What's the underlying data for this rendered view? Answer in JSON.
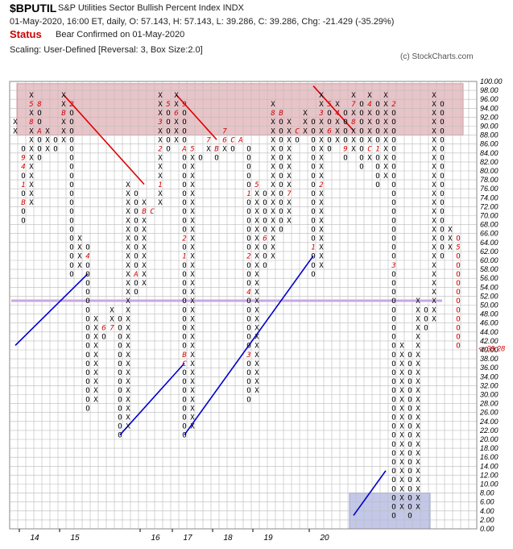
{
  "header": {
    "ticker": "$BPUTIL",
    "subtitle": "S&P Utilities Sector Bullish Percent Index  INDX",
    "ohlc": "01-May-2020, 16:00 ET, daily, O: 57.143, H: 57.143, L: 39.286, C: 39.286, Chg: -21.429 (-35.29%)",
    "status_label": "Status",
    "status_text": "Bear Confirmed on 01-May-2020",
    "scaling": "Scaling: User-Defined [Reversal: 3, Box Size:2.0]",
    "copyright": "(c) StockCharts.com"
  },
  "colors": {
    "x_symbol": "#000000",
    "o_symbol": "#000000",
    "month_marker": "#cc0000",
    "current_column": "#cc0000",
    "bullish_trendline": "#0000cc",
    "bearish_trendline": "#dd0000",
    "overbought_zone": "#e8c4c8",
    "oversold_zone": "#c4c8e8",
    "midline": "#c8a8e0",
    "grid": "#bbbbbb"
  },
  "chart_data": {
    "type": "point-and-figure",
    "box_size": 2.0,
    "reversal": 3,
    "ylim": [
      0,
      100
    ],
    "y_ticks": [
      0,
      2,
      4,
      6,
      8,
      10,
      12,
      14,
      16,
      18,
      20,
      22,
      24,
      26,
      28,
      30,
      32,
      34,
      36,
      38,
      40,
      42,
      44,
      46,
      48,
      50,
      52,
      54,
      56,
      58,
      60,
      62,
      64,
      66,
      68,
      70,
      72,
      74,
      76,
      78,
      80,
      82,
      84,
      86,
      88,
      90,
      92,
      94,
      96,
      98,
      100
    ],
    "y_tick_labels": [
      "0.00",
      "2.00",
      "4.00",
      "6.00",
      "8.00",
      "10.00",
      "12.00",
      "14.00",
      "16.00",
      "18.00",
      "20.00",
      "22.00",
      "24.00",
      "26.00",
      "28.00",
      "30.00",
      "32.00",
      "34.00",
      "36.00",
      "38.00",
      "40.00",
      "42.00",
      "44.00",
      "46.00",
      "48.00",
      "50.00",
      "52.00",
      "54.00",
      "56.00",
      "58.00",
      "60.00",
      "62.00",
      "64.00",
      "66.00",
      "68.00",
      "70.00",
      "72.00",
      "74.00",
      "76.00",
      "78.00",
      "80.00",
      "82.00",
      "84.00",
      "86.00",
      "88.00",
      "90.00",
      "92.00",
      "94.00",
      "96.00",
      "98.00",
      "100.00"
    ],
    "last_price_label": "<<39.28",
    "last_price": 39.286,
    "overbought_range": [
      88,
      100
    ],
    "oversold_range": [
      0,
      8
    ],
    "midline": 50,
    "year_labels": [
      {
        "col": 1,
        "label": "14"
      },
      {
        "col": 6,
        "label": "15"
      },
      {
        "col": 16,
        "label": "16"
      },
      {
        "col": 20,
        "label": "17"
      },
      {
        "col": 25,
        "label": "18"
      },
      {
        "col": 30,
        "label": "19"
      },
      {
        "col": 37,
        "label": "20"
      }
    ],
    "columns": [
      {
        "t": "X",
        "from": 88,
        "to": 90
      },
      {
        "t": "O",
        "from": 84,
        "to": 68,
        "m": {
          "88": "7",
          "82": "9",
          "80": "4",
          "76": "1",
          "72": "B",
          "66": "A"
        }
      },
      {
        "t": "X",
        "from": 72,
        "to": 96,
        "m": {
          "94": "5",
          "90": "8"
        }
      },
      {
        "t": "O",
        "from": 94,
        "to": 82,
        "m": {
          "94": "8",
          "88": "A"
        }
      },
      {
        "t": "X",
        "from": 84,
        "to": 88
      },
      {
        "t": "O",
        "from": 86,
        "to": 84,
        "m": {
          "82": "9"
        }
      },
      {
        "t": "X",
        "from": 86,
        "to": 96,
        "m": {
          "92": "B"
        }
      },
      {
        "t": "O",
        "from": 94,
        "to": 56,
        "m": {
          "94": "2"
        }
      },
      {
        "t": "X",
        "from": 58,
        "to": 64
      },
      {
        "t": "O",
        "from": 62,
        "to": 26,
        "m": {
          "64": "5",
          "60": "4"
        }
      },
      {
        "t": "X",
        "from": 28,
        "to": 46
      },
      {
        "t": "O",
        "from": 44,
        "to": 42,
        "m": {
          "44": "6"
        }
      },
      {
        "t": "X",
        "from": 44,
        "to": 48,
        "m": {
          "44": "7"
        }
      },
      {
        "t": "O",
        "from": 46,
        "to": 20,
        "m": {
          "48": "8"
        }
      },
      {
        "t": "X",
        "from": 22,
        "to": 76
      },
      {
        "t": "O",
        "from": 74,
        "to": 52,
        "m": {
          "76": "9",
          "56": "A"
        }
      },
      {
        "t": "X",
        "from": 54,
        "to": 72,
        "m": {
          "70": "B"
        }
      },
      {
        "t": "O",
        "from": 70,
        "to": 70,
        "m": {
          "70": "C"
        }
      },
      {
        "t": "X",
        "from": 72,
        "to": 96,
        "m": {
          "76": "1",
          "84": "2",
          "90": "3"
        }
      },
      {
        "t": "O",
        "from": 94,
        "to": 84,
        "m": {
          "94": "5"
        }
      },
      {
        "t": "X",
        "from": 86,
        "to": 96,
        "m": {
          "92": "6"
        }
      },
      {
        "t": "O",
        "from": 94,
        "to": 20,
        "m": {
          "94": "9",
          "84": "A",
          "64": "2",
          "60": "1",
          "38": "B",
          "36": "C"
        }
      },
      {
        "t": "X",
        "from": 22,
        "to": 84,
        "m": {
          "84": "5"
        }
      },
      {
        "t": "O",
        "from": 82,
        "to": 82
      },
      {
        "t": "X",
        "from": 84,
        "to": 86,
        "m": {
          "86": "7"
        }
      },
      {
        "t": "O",
        "from": 84,
        "to": 82,
        "m": {
          "84": "B"
        }
      },
      {
        "t": "X",
        "from": 84,
        "to": 88,
        "m": {
          "86": "6",
          "88": "7"
        }
      },
      {
        "t": "O",
        "from": 86,
        "to": 84,
        "m": {
          "86": "C"
        }
      },
      {
        "t": "X",
        "from": 86,
        "to": 86,
        "m": {
          "86": "A"
        }
      },
      {
        "t": "O",
        "from": 84,
        "to": 28,
        "m": {
          "74": "1",
          "60": "2",
          "52": "4",
          "38": "3"
        }
      },
      {
        "t": "X",
        "from": 30,
        "to": 76,
        "m": {
          "76": "5"
        }
      },
      {
        "t": "O",
        "from": 74,
        "to": 58,
        "m": {
          "64": "6"
        }
      },
      {
        "t": "X",
        "from": 60,
        "to": 94,
        "m": {
          "92": "8"
        }
      },
      {
        "t": "O",
        "from": 92,
        "to": 66,
        "m": {
          "92": "B"
        }
      },
      {
        "t": "X",
        "from": 68,
        "to": 90,
        "m": {
          "74": "7"
        }
      },
      {
        "t": "O",
        "from": 88,
        "to": 86,
        "m": {
          "88": "C"
        }
      },
      {
        "t": "X",
        "from": 88,
        "to": 92
      },
      {
        "t": "O",
        "from": 90,
        "to": 56,
        "m": {
          "62": "1"
        }
      },
      {
        "t": "X",
        "from": 58,
        "to": 96,
        "m": {
          "76": "2",
          "92": "3"
        }
      },
      {
        "t": "O",
        "from": 94,
        "to": 84,
        "m": {
          "94": "5",
          "88": "6"
        }
      },
      {
        "t": "X",
        "from": 86,
        "to": 94,
        "m": {
          "92": "4"
        }
      },
      {
        "t": "O",
        "from": 92,
        "to": 82,
        "m": {
          "84": "9"
        }
      },
      {
        "t": "X",
        "from": 84,
        "to": 96,
        "m": {
          "94": "7",
          "90": "8"
        }
      },
      {
        "t": "O",
        "from": 94,
        "to": 80
      },
      {
        "t": "X",
        "from": 82,
        "to": 96,
        "m": {
          "94": "4",
          "84": "C"
        }
      },
      {
        "t": "O",
        "from": 94,
        "to": 76,
        "m": {
          "84": "1"
        }
      },
      {
        "t": "X",
        "from": 78,
        "to": 96
      },
      {
        "t": "O",
        "from": 94,
        "to": 2,
        "m": {
          "94": "2",
          "58": "3"
        }
      },
      {
        "t": "X",
        "from": 4,
        "to": 40
      },
      {
        "t": "O",
        "from": 38,
        "to": 2
      },
      {
        "t": "X",
        "from": 4,
        "to": 50
      },
      {
        "t": "O",
        "from": 48,
        "to": 44,
        "m": {
          "50": "4"
        }
      },
      {
        "t": "X",
        "from": 46,
        "to": 96
      },
      {
        "t": "O",
        "from": 94,
        "to": 60
      },
      {
        "t": "X",
        "from": 62,
        "to": 66
      },
      {
        "t": "O",
        "from": 64,
        "to": 40,
        "current": true,
        "m": {
          "62": "5"
        }
      }
    ],
    "trendlines": [
      {
        "kind": "bullish",
        "from": [
          0,
          40
        ],
        "to": [
          9,
          56
        ]
      },
      {
        "kind": "bearish",
        "from": [
          6,
          96
        ],
        "to": [
          16,
          76
        ]
      },
      {
        "kind": "bullish",
        "from": [
          13,
          20
        ],
        "to": [
          21,
          36
        ]
      },
      {
        "kind": "bearish",
        "from": [
          20,
          96
        ],
        "to": [
          25,
          86
        ]
      },
      {
        "kind": "bullish",
        "from": [
          21,
          20
        ],
        "to": [
          37,
          60
        ]
      },
      {
        "kind": "bearish",
        "from": [
          37,
          98
        ],
        "to": [
          42,
          88
        ]
      },
      {
        "kind": "bullish",
        "from": [
          42,
          2
        ],
        "to": [
          46,
          12
        ]
      }
    ]
  }
}
